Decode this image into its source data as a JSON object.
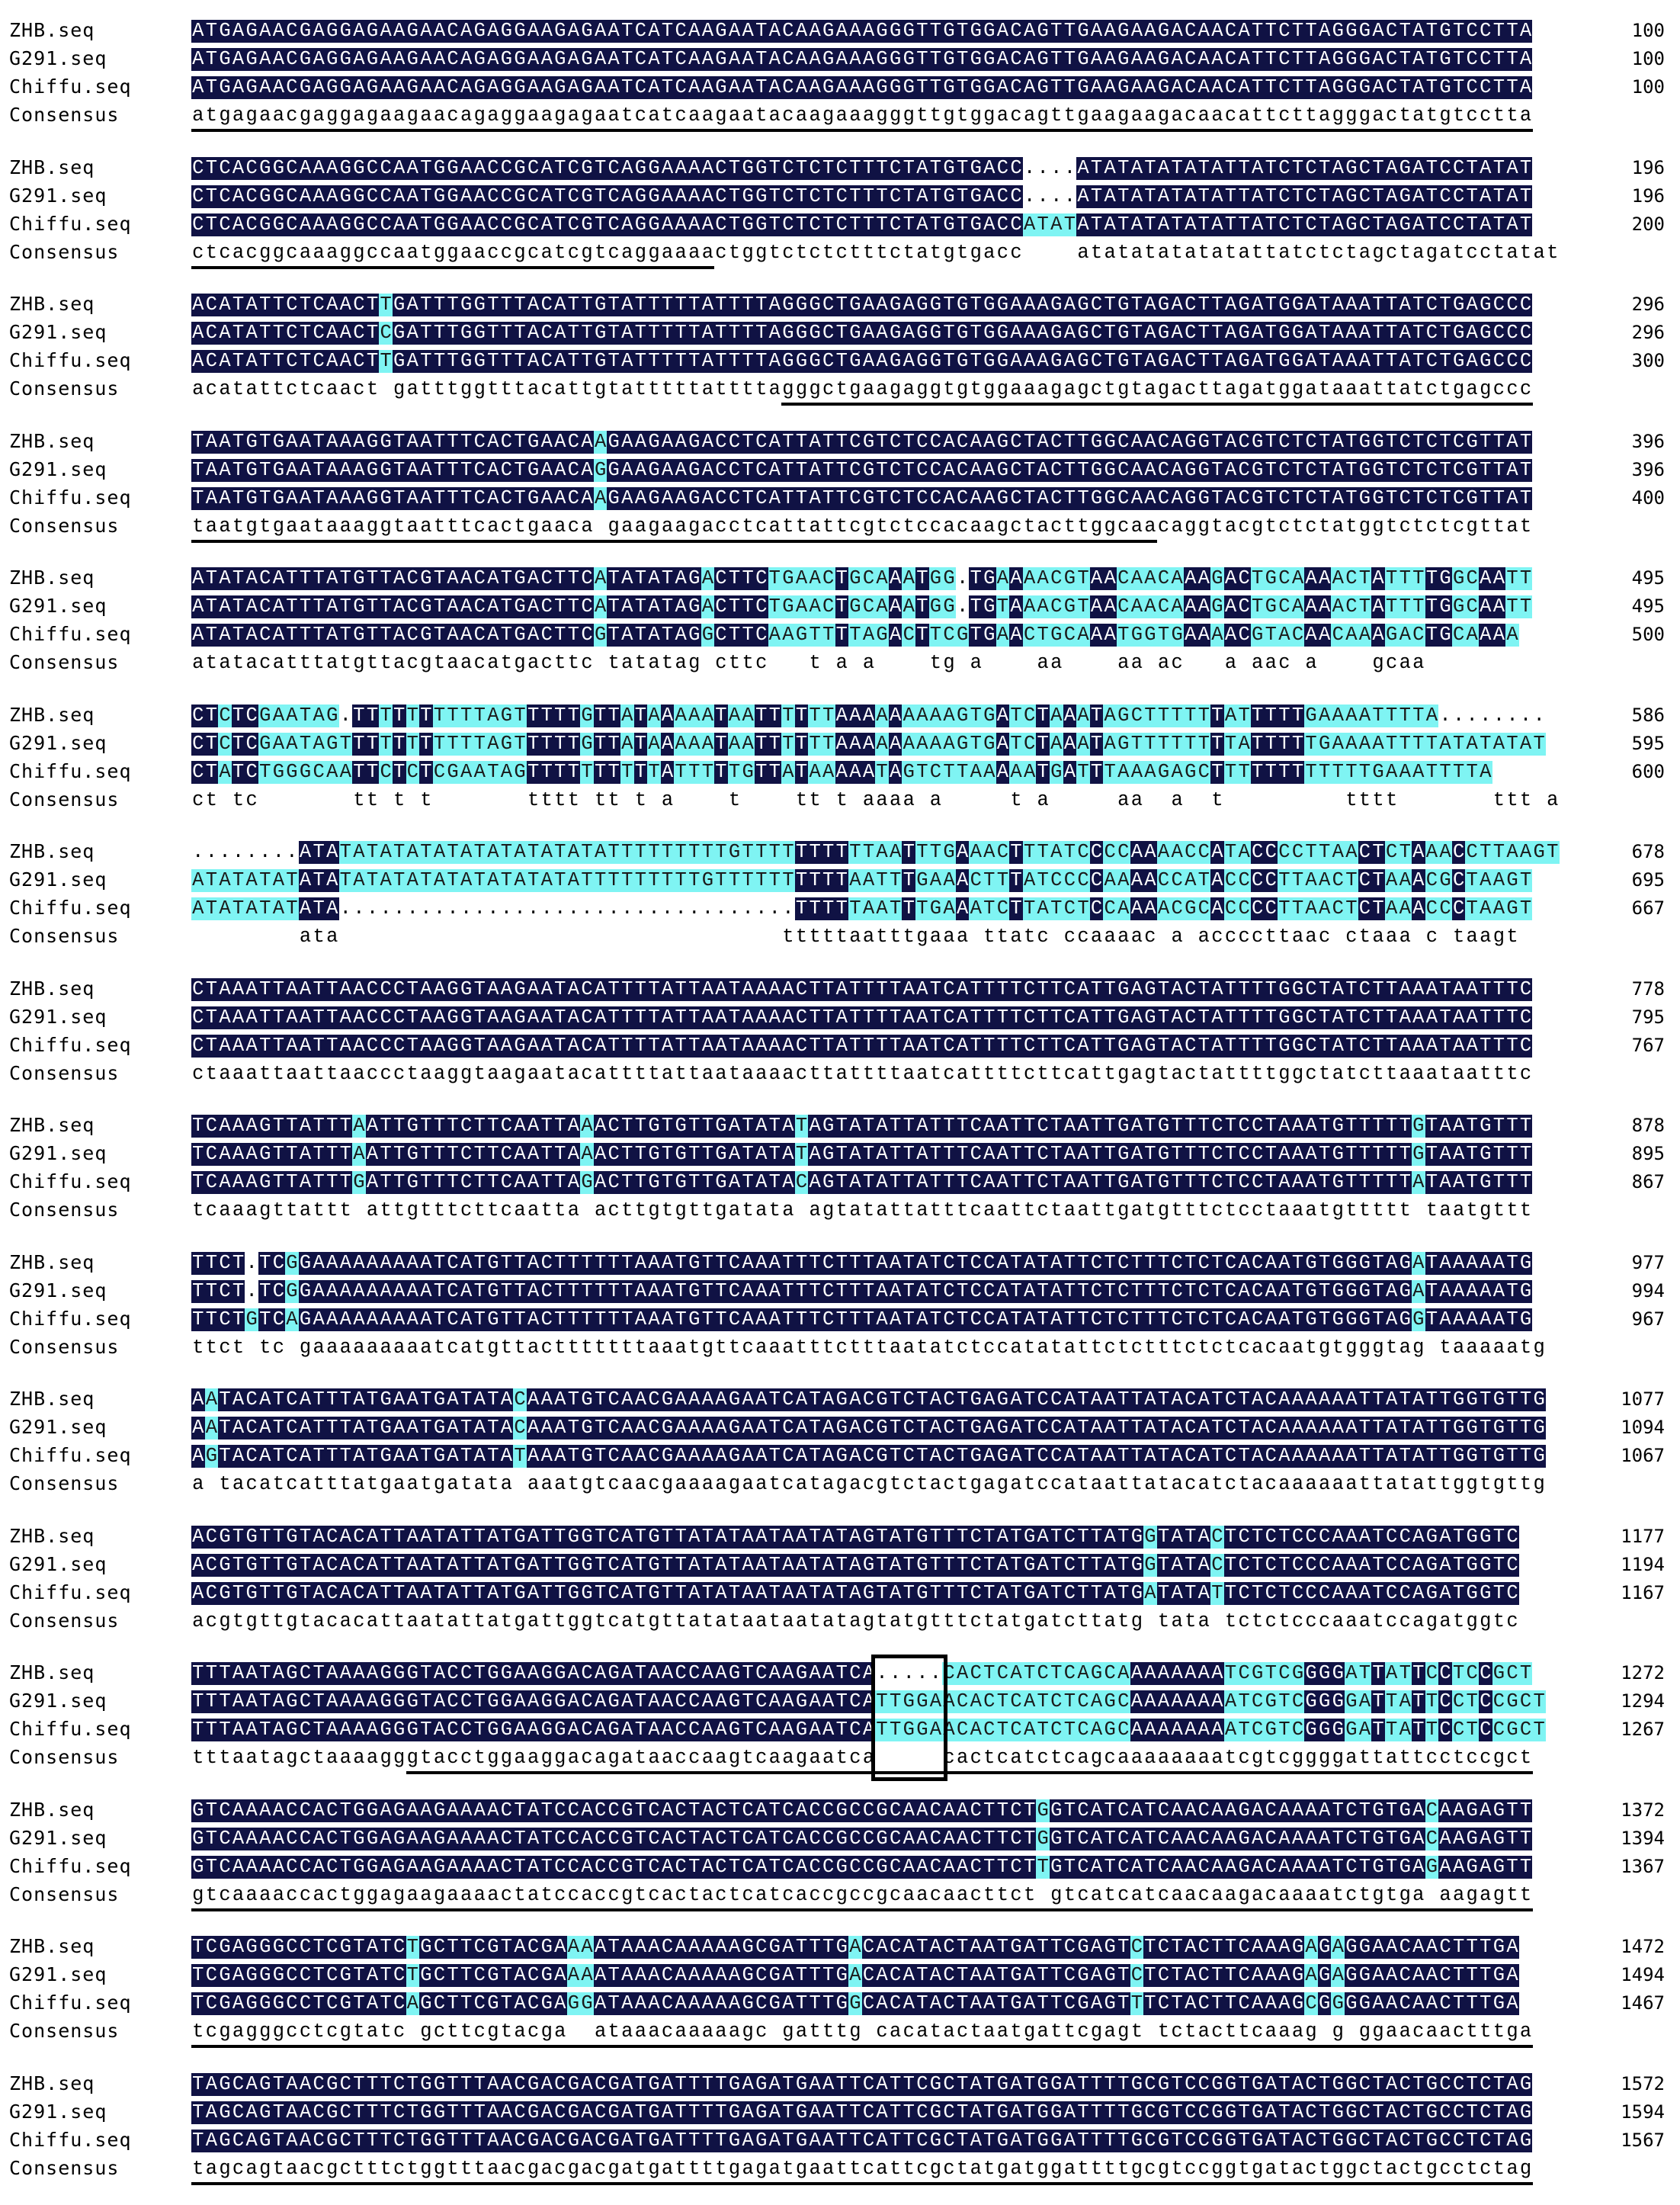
{
  "labels": [
    "ZHB.seq",
    "G291.seq",
    "Chiffu.seq",
    "Consensus"
  ],
  "blocks": [
    {
      "rows": [
        {
          "seq": "ATGAGAACGAGGAGAAGAACAGAGGAAGAGAATCATCAAGAATACAAGAAAGGGTTGTGGACAGTTGAAGAAGACAACATTCTTAGGGACTATGTCCTTA",
          "end": "100"
        },
        {
          "seq": "ATGAGAACGAGGAGAAGAACAGAGGAAGAGAATCATCAAGAATACAAGAAAGGGTTGTGGACAGTTGAAGAAGACAACATTCTTAGGGACTATGTCCTTA",
          "end": "100"
        },
        {
          "seq": "ATGAGAACGAGGAGAAGAACAGAGGAAGAGAATCATCAAGAATACAAGAAAGGGTTGTGGACAGTTGAAGAAGACAACATTCTTAGGGACTATGTCCTTA",
          "end": "100"
        }
      ],
      "consensus": "atgagaacgaggagaagaacagaggaagagaatcatcaagaatacaagaaagggttgtggacagttgaagaagacaacattcttagggactatgtcctta",
      "underline": [
        0,
        100
      ]
    },
    {
      "rows": [
        {
          "seq": "CTCACGGCAAAGGCCAATGGAACCGCATCGTCAGGAAAACTGGTCTCTCTTTCTATGTGACC....ATATATATATATTATCTCTAGCTAGATCCTATAT",
          "end": "196"
        },
        {
          "seq": "CTCACGGCAAAGGCCAATGGAACCGCATCGTCAGGAAAACTGGTCTCTCTTTCTATGTGACC....ATATATATATATTATCTCTAGCTAGATCCTATAT",
          "end": "196"
        },
        {
          "seq": "CTCACGGCAAAGGCCAATGGAACCGCATCGTCAGGAAAACTGGTCTCTCTTTCTATGTGACCATATATATATATATATTATCTCTAGCTAGATCCTATAT",
          "end": "200"
        }
      ],
      "consensus": "ctcacggcaaaggccaatggaaccgcatcgtcaggaaaactggtctctctttctatgtgacc    atatatatatatattatctctagctagatcctatat",
      "underline": [
        0,
        39
      ]
    },
    {
      "rows": [
        {
          "seq": "ACATATTCTCAACTTGATTTGGTTTACATTGTATTTTTATTTTAGGGCTGAAGAGGTGTGGAAAGAGCTGTAGACTTAGATGGATAAATTATCTGAGCCC",
          "end": "296"
        },
        {
          "seq": "ACATATTCTCAACTCGATTTGGTTTACATTGTATTTTTATTTTAGGGCTGAAGAGGTGTGGAAAGAGCTGTAGACTTAGATGGATAAATTATCTGAGCCC",
          "end": "296"
        },
        {
          "seq": "ACATATTCTCAACTTGATTTGGTTTACATTGTATTTTTATTTTAGGGCTGAAGAGGTGTGGAAAGAGCTGTAGACTTAGATGGATAAATTATCTGAGCCC",
          "end": "300"
        }
      ],
      "consensus": "acatattctcaact gatttggtttacattgtatttttattttagggctgaagaggtgtggaaagagctgtagacttagatggataaattatctgagccc",
      "underline": [
        44,
        100
      ]
    },
    {
      "rows": [
        {
          "seq": "TAATGTGAATAAAGGTAATTTCACTGAACAAGAAGAAGACCTCATTATTCGTCTCCACAAGCTACTTGGCAACAGGTACGTCTCTATGGTCTCTCGTTAT",
          "end": "396"
        },
        {
          "seq": "TAATGTGAATAAAGGTAATTTCACTGAACAGGAAGAAGACCTCATTATTCGTCTCCACAAGCTACTTGGCAACAGGTACGTCTCTATGGTCTCTCGTTAT",
          "end": "396"
        },
        {
          "seq": "TAATGTGAATAAAGGTAATTTCACTGAACAAGAAGAAGACCTCATTATTCGTCTCCACAAGCTACTTGGCAACAGGTACGTCTCTATGGTCTCTCGTTAT",
          "end": "400"
        }
      ],
      "consensus": "taatgtgaataaaggtaatttcactgaaca gaagaagacctcattattcgtctccacaagctacttggcaacaggtacgtctctatggtctctcgttat",
      "underline": [
        0,
        72
      ]
    },
    {
      "rows": [
        {
          "seq": "ATATACATTTATGTTACGTAACATGACTTCATATATAGACTTCTGAACTGCAAATGG.TGAAAACGTAACAACAAAGACTGCAAAACTATTTTGGCAATT",
          "end": "495"
        },
        {
          "seq": "ATATACATTTATGTTACGTAACATGACTTCATATATAGACTTCTGAACTGCAAATGG.TGTAAACGTAACAACAAAGACTGCAAAACTATTTTGGCAATT",
          "end": "495"
        },
        {
          "seq": "ATATACATTTATGTTACGTAACATGACTTCGTATATAGGCTTCAAGTTTTAGACTTCGTGAACTGCAAATGGTGAAAACGTACAACAAAGACTGCAAAA",
          "end": "500"
        }
      ],
      "consensus": "atatacatttatgttacgtaacatgacttc tatatag cttc   t a a    tg a    aa    aa ac   a aac a    gcaa",
      "underline": null
    },
    {
      "rows": [
        {
          "seq": "CTCTCGAATAG.TTTTTTTTTTAGTTTTTGTTATAAAAATAATTTTTTAAAAAAAAAGTGATCTAAATAGCTTTTTTATTTTTGAAAATTTTA........",
          "end": "586"
        },
        {
          "seq": "CTCTCGAATAGTTTTTTTTTTTAGTTTTTGTTATAAAAATAATTTTTTAAAAAAAAAGTGATCTAAATAGTTTTTTTTATTTTTGAAAATTTTATATATAT",
          "end": "595"
        },
        {
          "seq": "CTATCTGGGCAATTCTCTCGAATAGTTTTTTTTTTATTTTTGTTATAAAAATAGTCTTAAAAATGATTTAAAGAGCTTTTTTTTTTTTGAAATTTTA",
          "end": "600"
        }
      ],
      "consensus": "ct tc       tt t t       tttt tt t a    t    tt t aaaa a     t a     aa  a  t         tttt       ttt a",
      "underline": null
    },
    {
      "rows": [
        {
          "seq": "........ATATATATATATATATATATATATTTTTTTTTGTTTTTTTTTTAATTTGAAACTTTATCCCCAAAACCATACCCCTTAACTCTAAACCTTAAGT",
          "end": "678"
        },
        {
          "seq": "ATATATATATATATATATATATATATATATTTTTTTTTGTTTTTTTTTTAATTTGAAACTTTATCCCCAAAACCATACCCCTTAACTCTAAACGCTAAGT",
          "end": "695"
        },
        {
          "seq": "ATATATATATA..................................TTTTTAATTTGAAATCTTATCTCCAAAACGCACCCCTTAACTCTAAACCCTAAGT",
          "end": "667"
        }
      ],
      "consensus": "        ata                                 tttttaatttgaaa ttatc ccaaaac a accccttaac ctaaa c taagt",
      "underline": null
    },
    {
      "rows": [
        {
          "seq": "CTAAATTAATTAACCCTAAGGTAAGAATACATTTTATTAATAAAACTTATTTTAATCATTTTCTTCATTGAGTACTATTTTGGCTATCTTAAATAATTTC",
          "end": "778"
        },
        {
          "seq": "CTAAATTAATTAACCCTAAGGTAAGAATACATTTTATTAATAAAACTTATTTTAATCATTTTCTTCATTGAGTACTATTTTGGCTATCTTAAATAATTTC",
          "end": "795"
        },
        {
          "seq": "CTAAATTAATTAACCCTAAGGTAAGAATACATTTTATTAATAAAACTTATTTTAATCATTTTCTTCATTGAGTACTATTTTGGCTATCTTAAATAATTTC",
          "end": "767"
        }
      ],
      "consensus": "ctaaattaattaaccctaaggtaagaatacattttattaataaaacttattttaatcattttcttcattgagtactattttggctatcttaaataatttc",
      "underline": null
    },
    {
      "rows": [
        {
          "seq": "TCAAAGTTATTTAATTGTTTCTTCAATTAAACTTGTGTTGATATATAGTATATTATTTCAATTCTAATTGATGTTTCTCCTAAATGTTTTTGTAATGTTT",
          "end": "878"
        },
        {
          "seq": "TCAAAGTTATTTAATTGTTTCTTCAATTAAACTTGTGTTGATATATAGTATATTATTTCAATTCTAATTGATGTTTCTCCTAAATGTTTTTGTAATGTTT",
          "end": "895"
        },
        {
          "seq": "TCAAAGTTATTTGATTGTTTCTTCAATTAGACTTGTGTTGATATACAGTATATTATTTCAATTCTAATTGATGTTTCTCCTAAATGTTTTTATAATGTTT",
          "end": "867"
        }
      ],
      "consensus": "tcaaagttattt attgtttcttcaatta acttgtgttgatata agtatattatttcaattctaattgatgtttctcctaaatgttttt taatgttt",
      "underline": null
    },
    {
      "rows": [
        {
          "seq": "TTCT.TCGGAAAAAAAAATCATGTTACTTTTTTAAATGTTCAAATTTCTTTAATATCTCCATATATTCTCTTTCTCTCACAATGTGGGTAGATAAAAATG",
          "end": "977"
        },
        {
          "seq": "TTCT.TCGGAAAAAAAAATCATGTTACTTTTTTAAATGTTCAAATTTCTTTAATATCTCCATATATTCTCTTTCTCTCACAATGTGGGTAGATAAAAATG",
          "end": "994"
        },
        {
          "seq": "TTCTGTCAGAAAAAAAAATCATGTTACTTTTTTAAATGTTCAAATTTCTTTAATATCTCCATATATTCTCTTTCTCTCACAATGTGGGTAGGTAAAAATG",
          "end": "967"
        }
      ],
      "consensus": "ttct tc gaaaaaaaaatcatgttactttttttaaatgttcaaatttctttaatatctccatatattctctttctctcacaatgtgggtag taaaaatg",
      "underline": null
    },
    {
      "rows": [
        {
          "seq": "AATACATCATTTATGAATGATATACAAATGTCAACGAAAAGAATCATAGACGTCTACTGAGATCCATAATTATACATCTACAAAAAATTATATTGGTGTTG",
          "end": "1077"
        },
        {
          "seq": "AATACATCATTTATGAATGATATACAAATGTCAACGAAAAGAATCATAGACGTCTACTGAGATCCATAATTATACATCTACAAAAAATTATATTGGTGTTG",
          "end": "1094"
        },
        {
          "seq": "AGTACATCATTTATGAATGATATATAAATGTCAACGAAAAGAATCATAGACGTCTACTGAGATCCATAATTATACATCTACAAAAAATTATATTGGTGTTG",
          "end": "1067"
        }
      ],
      "consensus": "a tacatcatttatgaatgatata aaatgtcaacgaaaagaatcatagacgtctactgagatccataattatacatctacaaaaaattatattggtgttg",
      "underline": null
    },
    {
      "rows": [
        {
          "seq": "ACGTGTTGTACACATTAATATTATGATTGGTCATGTTATATAATAATATAGTATGTTTCTATGATCTTATGGTATACTCTCTCCCAAATCCAGATGGTC",
          "end": "1177"
        },
        {
          "seq": "ACGTGTTGTACACATTAATATTATGATTGGTCATGTTATATAATAATATAGTATGTTTCTATGATCTTATGGTATACTCTCTCCCAAATCCAGATGGTC",
          "end": "1194"
        },
        {
          "seq": "ACGTGTTGTACACATTAATATTATGATTGGTCATGTTATATAATAATATAGTATGTTTCTATGATCTTATGATATATTCTCTCCCAAATCCAGATGGTC",
          "end": "1167"
        }
      ],
      "consensus": "acgtgttgtacacattaatattatgattggtcatgttatataataatatagtatgtttctatgatcttatg tata tctctcccaaatccagatggtc",
      "underline": null
    },
    {
      "rows": [
        {
          "seq": "TTTAATAGCTAAAAGGGTACCTGGAAGGACAGATAACCAAGTCAAGAATCA.....CACTCATCTCAGCAAAAAAAATCGTCGGGGATTATTCCTCCGCT",
          "end": "1272"
        },
        {
          "seq": "TTTAATAGCTAAAAGGGTACCTGGAAGGACAGATAACCAAGTCAAGAATCATTGGAACACTCATCTCAGCAAAAAAAATCGTCGGGGATTATTCCTCCGCT",
          "end": "1294"
        },
        {
          "seq": "TTTAATAGCTAAAAGGGTACCTGGAAGGACAGATAACCAAGTCAAGAATCATTGGAACACTCATCTCAGCAAAAAAAATCGTCGGGGATTATTCCTCCGCT",
          "end": "1267"
        }
      ],
      "consensus": "tttaatagctaaaagggtacctggaaggacagataaccaagtcaagaatca     cactcatctcagcaaaaaaaatcgtcggggattattcctccgct",
      "underline": [
        16,
        100
      ]
    },
    {
      "rows": [
        {
          "seq": "GTCAAAACCACTGGAGAAGAAAACTATCCACCGTCACTACTCATCACCGCCGCAACAACTTCTGGTCATCATCAACAAGACAAAATCTGTGACAAGAGTT",
          "end": "1372"
        },
        {
          "seq": "GTCAAAACCACTGGAGAAGAAAACTATCCACCGTCACTACTCATCACCGCCGCAACAACTTCTGGTCATCATCAACAAGACAAAATCTGTGACAAGAGTT",
          "end": "1394"
        },
        {
          "seq": "GTCAAAACCACTGGAGAAGAAAACTATCCACCGTCACTACTCATCACCGCCGCAACAACTTCTTGTCATCATCAACAAGACAAAATCTGTGAGAAGAGTT",
          "end": "1367"
        }
      ],
      "consensus": "gtcaaaaccactggagaagaaaactatccaccgtcactactcatcaccgccgcaacaacttct gtcatcatcaacaagacaaaatctgtga aagagtt",
      "underline": [
        0,
        100
      ]
    },
    {
      "rows": [
        {
          "seq": "TCGAGGGCCTCGTATCTGCTTCGTACGAAAATAAACAAAAAGCGATTTGACACATACTAATGATTCGAGTCTCTACTTCAAAGAGAGGAACAACTTTGA",
          "end": "1472"
        },
        {
          "seq": "TCGAGGGCCTCGTATCTGCTTCGTACGAAAATAAACAAAAAGCGATTTGACACATACTAATGATTCGAGTCTCTACTTCAAAGAGAGGAACAACTTTGA",
          "end": "1494"
        },
        {
          "seq": "TCGAGGGCCTCGTATCAGCTTCGTACGAGGATAAACAAAAAGCGATTTGGCACATACTAATGATTCGAGTTTCTACTTCAAAGCGGGGAACAACTTTGA",
          "end": "1467"
        }
      ],
      "consensus": "tcgagggcctcgtatc gcttcgtacga  ataaacaaaaagc gatttg cacatactaatgattcgagt tctacttcaaag g ggaacaactttga",
      "underline": [
        0,
        100
      ]
    },
    {
      "rows": [
        {
          "seq": "TAGCAGTAACGCTTTCTGGTTTAACGACGACGATGATTTTGAGATGAATTCATTCGCTATGATGGATTTTGCGTCCGGTGATACTGGCTACTGCCTCTAG",
          "end": "1572"
        },
        {
          "seq": "TAGCAGTAACGCTTTCTGGTTTAACGACGACGATGATTTTGAGATGAATTCATTCGCTATGATGGATTTTGCGTCCGGTGATACTGGCTACTGCCTCTAG",
          "end": "1594"
        },
        {
          "seq": "TAGCAGTAACGCTTTCTGGTTTAACGACGACGATGATTTTGAGATGAATTCATTCGCTATGATGGATTTTGCGTCCGGTGATACTGGCTACTGCCTCTAG",
          "end": "1567"
        }
      ],
      "consensus": "tagcagtaacgctttctggtttaacgacgacgatgattttgagatgaattcattcgctatgatggattttgcgtccggtgatactggctactgcctctag",
      "underline": [
        0,
        100
      ]
    }
  ],
  "highlight_box": {
    "block": 12,
    "from_col": 51,
    "to_col": 56
  }
}
